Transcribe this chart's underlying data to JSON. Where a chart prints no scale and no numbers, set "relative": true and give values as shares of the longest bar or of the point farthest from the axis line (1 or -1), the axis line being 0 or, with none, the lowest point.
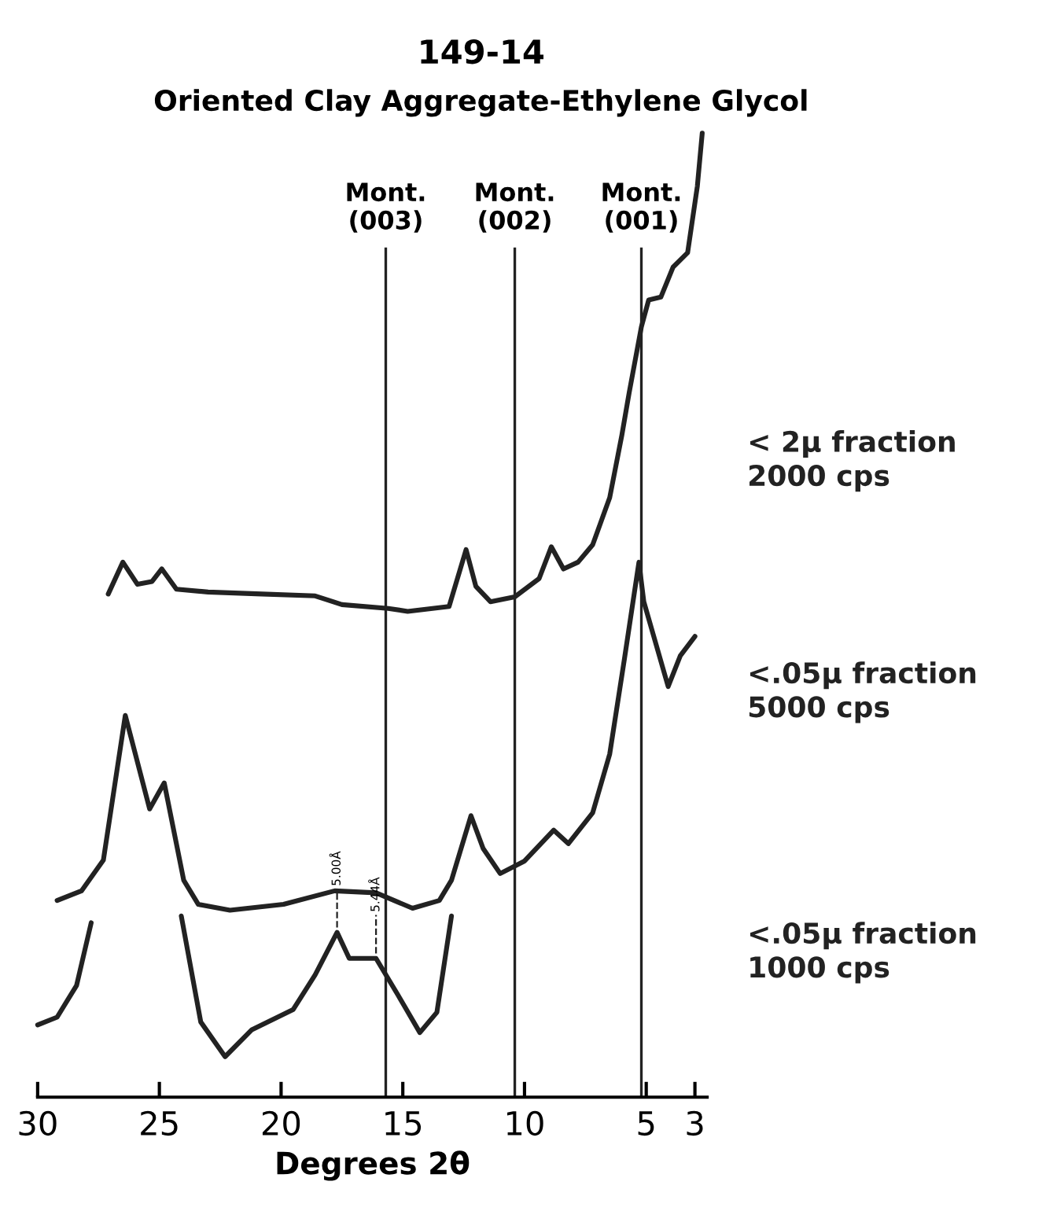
{
  "chart_data": {
    "type": "line",
    "title": "149-14",
    "subtitle": "Oriented Clay Aggregate-Ethylene Glycol",
    "xlabel": "Degrees 2θ",
    "relative": true,
    "xlim": [
      30,
      2.5
    ],
    "xticks": [
      30,
      25,
      20,
      15,
      10,
      5,
      3
    ],
    "grid": false,
    "legend": false,
    "marker": "none",
    "line_style": "solid",
    "series": [
      {
        "name": "< 2µ fraction\n2000 cps",
        "color": "#222222",
        "x": [
          27.1,
          26.5,
          25.9,
          25.3,
          24.9,
          24.3,
          23.0,
          20.8,
          18.6,
          17.5,
          15.6,
          14.8,
          13.1,
          12.4,
          12.0,
          11.4,
          10.4,
          9.4,
          8.9,
          8.4,
          7.8,
          7.2,
          6.5,
          6.0,
          5.7,
          5.2,
          4.9,
          4.4,
          3.9,
          3.3,
          2.9,
          2.7
        ],
        "values": [
          0.522,
          0.555,
          0.532,
          0.535,
          0.548,
          0.527,
          0.524,
          0.522,
          0.52,
          0.511,
          0.507,
          0.504,
          0.509,
          0.568,
          0.53,
          0.514,
          0.519,
          0.538,
          0.571,
          0.548,
          0.555,
          0.573,
          0.622,
          0.687,
          0.731,
          0.799,
          0.827,
          0.83,
          0.861,
          0.876,
          0.945,
          1.0
        ]
      },
      {
        "name": "<.05µ fraction\n5000 cps",
        "color": "#222222",
        "x": [
          29.2,
          28.2,
          27.3,
          26.4,
          25.4,
          24.8,
          24.0,
          23.4,
          22.1,
          19.9,
          17.8,
          16.1,
          14.6,
          13.5,
          13.0,
          12.2,
          11.7,
          11.0,
          10.0,
          8.8,
          8.2,
          7.2,
          6.5,
          5.9,
          5.3,
          5.1,
          4.1,
          3.6,
          3.0
        ],
        "values": [
          0.204,
          0.214,
          0.246,
          0.396,
          0.299,
          0.326,
          0.225,
          0.2,
          0.194,
          0.2,
          0.214,
          0.212,
          0.196,
          0.204,
          0.225,
          0.292,
          0.258,
          0.232,
          0.245,
          0.277,
          0.263,
          0.295,
          0.356,
          0.454,
          0.555,
          0.514,
          0.426,
          0.458,
          0.478
        ]
      },
      {
        "name": "<.05µ fraction\n1000 cps",
        "color": "#222222",
        "x": [
          30.0,
          29.2,
          28.4,
          27.8,
          26.0,
          24.1,
          23.3,
          22.3,
          21.2,
          19.5,
          18.6,
          17.7,
          17.2,
          16.1,
          15.2,
          14.3,
          13.6,
          13.0
        ],
        "values": [
          0.075,
          0.083,
          0.116,
          0.181,
          null,
          0.188,
          0.078,
          0.042,
          0.07,
          0.091,
          0.127,
          0.171,
          0.144,
          0.144,
          0.106,
          0.067,
          0.088,
          0.188
        ]
      }
    ],
    "ref_lines": [
      {
        "axis": "x",
        "value": 15.7,
        "label": "Mont.\n(003)"
      },
      {
        "axis": "x",
        "value": 10.4,
        "label": "Mont.\n(002)"
      },
      {
        "axis": "x",
        "value": 5.2,
        "label": "Mont.\n(001)"
      }
    ],
    "annotations": [
      {
        "text": "5.00Å",
        "x": 17.7,
        "y": 0.171
      },
      {
        "text": "5.44Å",
        "x": 16.1,
        "y": 0.144
      }
    ]
  }
}
